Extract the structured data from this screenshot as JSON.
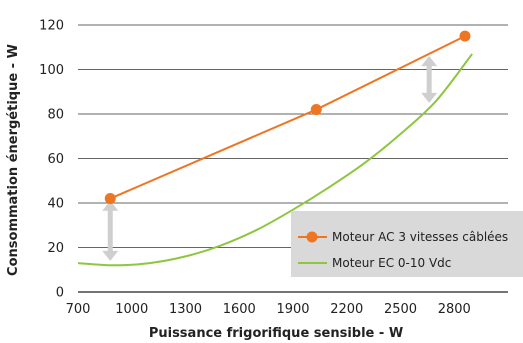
{
  "chart_data": {
    "type": "line",
    "xlabel": "Puissance frigorifique sensible - W",
    "ylabel": "Consommation énergétique - W",
    "xlim": [
      700,
      3100
    ],
    "ylim": [
      0,
      120
    ],
    "x_ticks": [
      700,
      1000,
      1300,
      1600,
      1900,
      2200,
      2500,
      2800
    ],
    "y_ticks": [
      0,
      20,
      40,
      60,
      80,
      100,
      120
    ],
    "grid": "horizontal",
    "legend_position": "right",
    "series": [
      {
        "name": "Moteur AC 3 vitesses câblées",
        "color": "#EE7623",
        "markers": true,
        "points": [
          [
            880,
            42
          ],
          [
            2030,
            82
          ],
          [
            2860,
            115
          ]
        ]
      },
      {
        "name": "Moteur EC  0-10 Vdc",
        "color": "#8DC63F",
        "markers": false,
        "points": [
          [
            700,
            13
          ],
          [
            900,
            12
          ],
          [
            1100,
            13
          ],
          [
            1300,
            16
          ],
          [
            1500,
            21
          ],
          [
            1700,
            28
          ],
          [
            1900,
            37
          ],
          [
            2100,
            47
          ],
          [
            2300,
            58
          ],
          [
            2500,
            71
          ],
          [
            2700,
            86
          ],
          [
            2900,
            107
          ]
        ]
      }
    ],
    "annotations": [
      {
        "kind": "double-arrow",
        "x": 880,
        "y_from": 14,
        "y_to": 41
      },
      {
        "kind": "double-arrow",
        "x": 2660,
        "y_from": 85,
        "y_to": 106
      }
    ]
  }
}
